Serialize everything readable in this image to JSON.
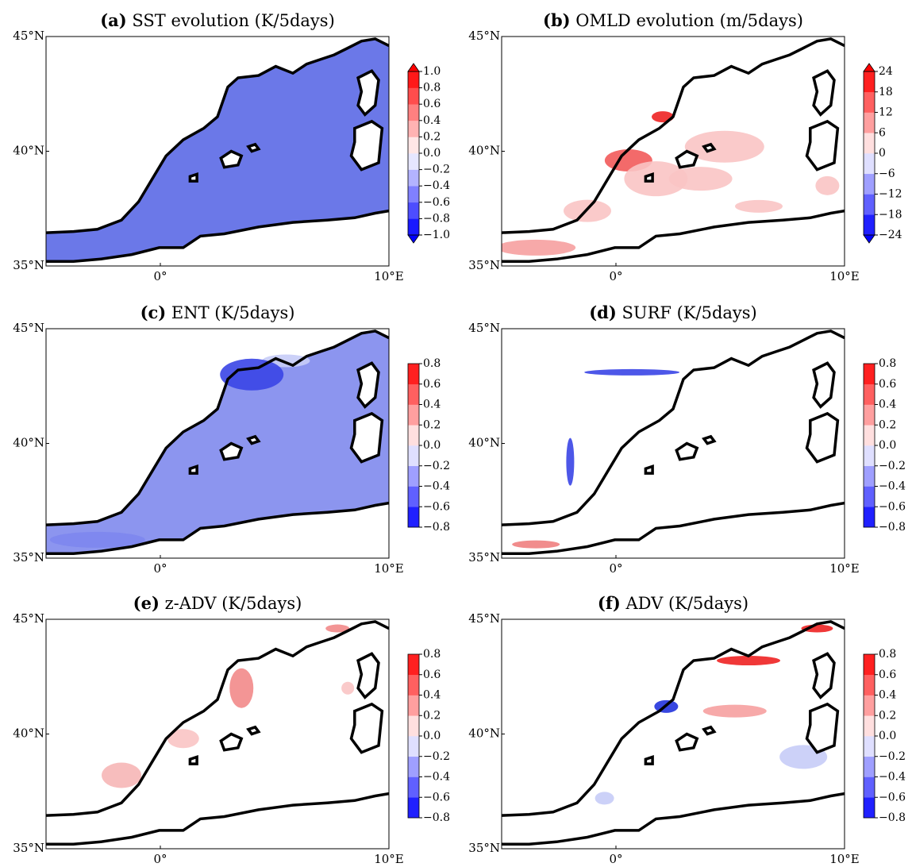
{
  "chart_data": [
    {
      "type": "map",
      "label": "(a)",
      "title": "SST evolution (K/5days)",
      "xlim": [
        -5,
        10
      ],
      "ylim": [
        35,
        45
      ],
      "xticks": [
        {
          "value": 0,
          "label": "0°"
        },
        {
          "value": 10,
          "label": "10°E"
        }
      ],
      "yticks": [
        {
          "value": 35,
          "label": "35°N"
        },
        {
          "value": 40,
          "label": "40°N"
        },
        {
          "value": 45,
          "label": "45°N"
        }
      ],
      "sea_color": "#6b78e8",
      "colorbar": {
        "extend": "both",
        "ticks": [
          {
            "value": -1.0,
            "label": "−1.0"
          },
          {
            "value": -0.8,
            "label": "−0.8"
          },
          {
            "value": -0.6,
            "label": "−0.6"
          },
          {
            "value": -0.4,
            "label": "−0.4"
          },
          {
            "value": -0.2,
            "label": "−0.2"
          },
          {
            "value": 0.0,
            "label": "0.0"
          },
          0.2,
          0.4,
          0.6,
          0.8,
          {
            "value": 1.0,
            "label": "1.0"
          }
        ]
      }
    },
    {
      "type": "map",
      "label": "(b)",
      "title": "OMLD evolution (m/5days)",
      "xlim": [
        -5,
        10
      ],
      "ylim": [
        35,
        45
      ],
      "xticks": [
        {
          "value": 0,
          "label": "0°"
        },
        {
          "value": 10,
          "label": "10°E"
        }
      ],
      "yticks": [
        {
          "value": 35,
          "label": "35°N"
        },
        {
          "value": 40,
          "label": "40°N"
        },
        {
          "value": 45,
          "label": "45°N"
        }
      ],
      "sea_color": "#ffffff",
      "colorbar": {
        "extend": "both",
        "ticks": [
          {
            "value": -24,
            "label": "−24"
          },
          {
            "value": -18,
            "label": "−18"
          },
          {
            "value": -12,
            "label": "−12"
          },
          {
            "value": -6,
            "label": "−6"
          },
          0,
          6,
          12,
          18,
          24
        ]
      }
    },
    {
      "type": "map",
      "label": "(c)",
      "title": "ENT (K/5days)",
      "xlim": [
        -5,
        10
      ],
      "ylim": [
        35,
        45
      ],
      "xticks": [
        {
          "value": 0,
          "label": "0°"
        },
        {
          "value": 10,
          "label": "10°E"
        }
      ],
      "yticks": [
        {
          "value": 35,
          "label": "35°N"
        },
        {
          "value": 40,
          "label": "40°N"
        },
        {
          "value": 45,
          "label": "45°N"
        }
      ],
      "sea_color": "#8c95ef",
      "colorbar": {
        "extend": "neither",
        "ticks": [
          {
            "value": -0.8,
            "label": "−0.8"
          },
          {
            "value": -0.6,
            "label": "−0.6"
          },
          {
            "value": -0.4,
            "label": "−0.4"
          },
          {
            "value": -0.2,
            "label": "−0.2"
          },
          {
            "value": 0.0,
            "label": "0.0"
          },
          0.2,
          0.4,
          0.6,
          0.8
        ]
      }
    },
    {
      "type": "map",
      "label": "(d)",
      "title": "SURF (K/5days)",
      "xlim": [
        -5,
        10
      ],
      "ylim": [
        35,
        45
      ],
      "xticks": [
        {
          "value": 0,
          "label": "0°"
        },
        {
          "value": 10,
          "label": "10°E"
        }
      ],
      "yticks": [
        {
          "value": 35,
          "label": "35°N"
        },
        {
          "value": 40,
          "label": "40°N"
        },
        {
          "value": 45,
          "label": "45°N"
        }
      ],
      "sea_color": "#ffffff",
      "colorbar": {
        "extend": "neither",
        "ticks": [
          {
            "value": -0.8,
            "label": "−0.8"
          },
          {
            "value": -0.6,
            "label": "−0.6"
          },
          {
            "value": -0.4,
            "label": "−0.4"
          },
          {
            "value": -0.2,
            "label": "−0.2"
          },
          {
            "value": 0.0,
            "label": "0.0"
          },
          0.2,
          0.4,
          0.6,
          0.8
        ]
      }
    },
    {
      "type": "map",
      "label": "(e)",
      "title": "z-ADV (K/5days)",
      "xlim": [
        -5,
        10
      ],
      "ylim": [
        35,
        45
      ],
      "xticks": [
        {
          "value": 0,
          "label": "0°"
        },
        {
          "value": 10,
          "label": "10°E"
        }
      ],
      "yticks": [
        {
          "value": 35,
          "label": "35°N"
        },
        {
          "value": 40,
          "label": "40°N"
        },
        {
          "value": 45,
          "label": "45°N"
        }
      ],
      "sea_color": "#ffffff",
      "colorbar": {
        "extend": "neither",
        "ticks": [
          {
            "value": -0.8,
            "label": "−0.8"
          },
          {
            "value": -0.6,
            "label": "−0.6"
          },
          {
            "value": -0.4,
            "label": "−0.4"
          },
          {
            "value": -0.2,
            "label": "−0.2"
          },
          {
            "value": 0.0,
            "label": "0.0"
          },
          0.2,
          0.4,
          0.6,
          0.8
        ]
      }
    },
    {
      "type": "map",
      "label": "(f)",
      "title": "ADV (K/5days)",
      "xlim": [
        -5,
        10
      ],
      "ylim": [
        35,
        45
      ],
      "xticks": [
        {
          "value": 0,
          "label": "0°"
        },
        {
          "value": 10,
          "label": "10°E"
        }
      ],
      "yticks": [
        {
          "value": 35,
          "label": "35°N"
        },
        {
          "value": 40,
          "label": "40°N"
        },
        {
          "value": 45,
          "label": "45°N"
        }
      ],
      "sea_color": "#ffffff",
      "colorbar": {
        "extend": "neither",
        "ticks": [
          {
            "value": -0.8,
            "label": "−0.8"
          },
          {
            "value": -0.6,
            "label": "−0.6"
          },
          {
            "value": -0.4,
            "label": "−0.4"
          },
          {
            "value": -0.2,
            "label": "−0.2"
          },
          {
            "value": 0.0,
            "label": "0.0"
          },
          0.2,
          0.4,
          0.6,
          0.8
        ]
      }
    }
  ]
}
